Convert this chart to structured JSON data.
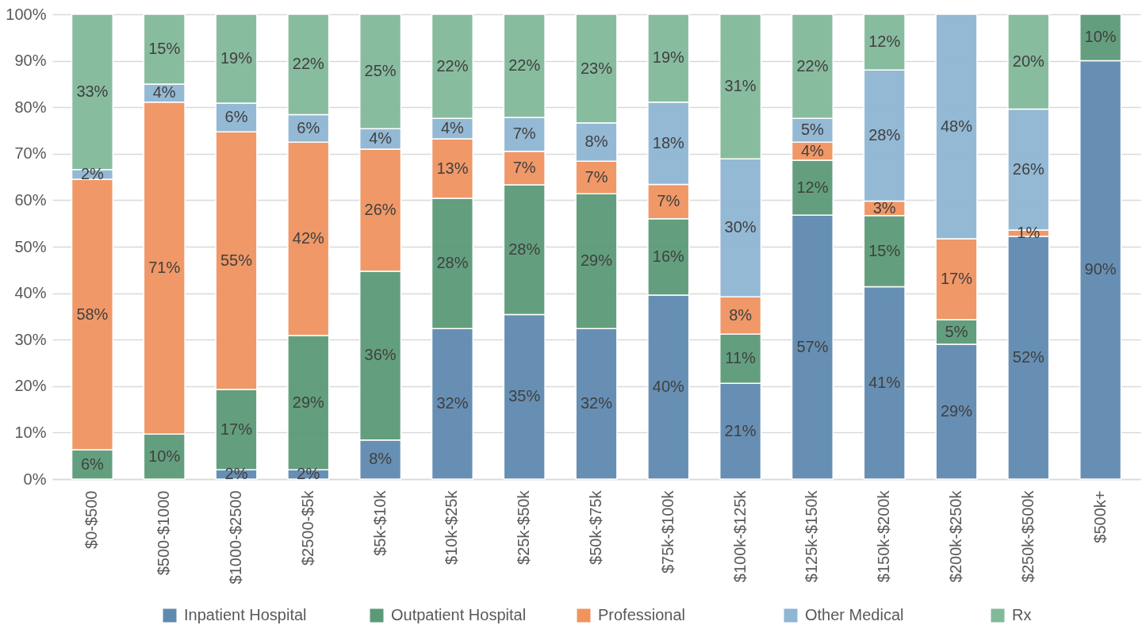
{
  "chart_data": {
    "type": "bar",
    "stacked": true,
    "grid": "y",
    "legend": "bottom",
    "categories": [
      "$0-$500",
      "$500-$1000",
      "$1000-$2500",
      "$2500-$5k",
      "$5k-$10k",
      "$10k-$25k",
      "$25k-$50k",
      "$50k-$75k",
      "$75k-$100k",
      "$100k-$125k",
      "$125k-$150k",
      "$150k-$200k",
      "$200k-$250k",
      "$250k-$500k",
      "$500k+"
    ],
    "ylim": [
      0,
      100
    ],
    "yticks": [
      {
        "value": 0,
        "label": "0%"
      },
      {
        "value": 10,
        "label": "10%"
      },
      {
        "value": 20,
        "label": "20%"
      },
      {
        "value": 30,
        "label": "30%"
      },
      {
        "value": 40,
        "label": "40%"
      },
      {
        "value": 50,
        "label": "50%"
      },
      {
        "value": 60,
        "label": "60%"
      },
      {
        "value": 70,
        "label": "70%"
      },
      {
        "value": 80,
        "label": "80%"
      },
      {
        "value": 90,
        "label": "90%"
      },
      {
        "value": 100,
        "label": "100%"
      }
    ],
    "series": [
      {
        "name": "Inpatient Hospital",
        "color": "#5f8ab0",
        "values": [
          null,
          null,
          2.0,
          2.0,
          8.4,
          32.4,
          35.4,
          32.4,
          39.6,
          20.6,
          56.8,
          41.4,
          29.0,
          52.2,
          90.0
        ],
        "value_labels": [
          null,
          null,
          "2%",
          "2%",
          "8%",
          "32%",
          "35%",
          "32%",
          "40%",
          "21%",
          "57%",
          "41%",
          "29%",
          "52%",
          "90%"
        ]
      },
      {
        "name": "Outpatient Hospital",
        "color": "#5b9a78",
        "values": [
          6.3,
          9.7,
          17.3,
          28.9,
          36.3,
          28.0,
          27.9,
          29.0,
          16.4,
          10.6,
          11.8,
          15.3,
          5.3,
          null,
          10.0
        ],
        "value_labels": [
          "6%",
          "10%",
          "17%",
          "29%",
          "36%",
          "28%",
          "28%",
          "29%",
          "16%",
          "11%",
          "12%",
          "15%",
          "5%",
          null,
          "10%"
        ]
      },
      {
        "name": "Professional",
        "color": "#f0935f",
        "values": [
          58.2,
          71.4,
          55.4,
          41.6,
          26.3,
          12.8,
          7.2,
          7.0,
          7.4,
          8.0,
          3.9,
          3.1,
          17.4,
          1.4,
          null
        ],
        "value_labels": [
          "58%",
          "71%",
          "55%",
          "42%",
          "26%",
          "13%",
          "7%",
          "7%",
          "7%",
          "8%",
          "4%",
          "3%",
          "17%",
          "1%",
          null
        ]
      },
      {
        "name": "Other Medical",
        "color": "#8fb6d3",
        "values": [
          2.1,
          3.9,
          6.2,
          5.9,
          4.4,
          4.4,
          7.3,
          8.2,
          17.7,
          29.7,
          5.1,
          28.2,
          48.3,
          26.0,
          null
        ],
        "value_labels": [
          "2%",
          "4%",
          "6%",
          "6%",
          "4%",
          "4%",
          "7%",
          "8%",
          "18%",
          "30%",
          "5%",
          "28%",
          "48%",
          "26%",
          null
        ]
      },
      {
        "name": "Rx",
        "color": "#82b99a",
        "values": [
          33.4,
          15.0,
          19.1,
          21.6,
          24.6,
          22.4,
          22.2,
          23.4,
          18.9,
          31.1,
          22.4,
          12.0,
          null,
          20.4,
          null
        ],
        "value_labels": [
          "33%",
          "15%",
          "19%",
          "22%",
          "25%",
          "22%",
          "22%",
          "23%",
          "19%",
          "31%",
          "22%",
          "12%",
          null,
          "20%",
          null
        ]
      }
    ]
  }
}
